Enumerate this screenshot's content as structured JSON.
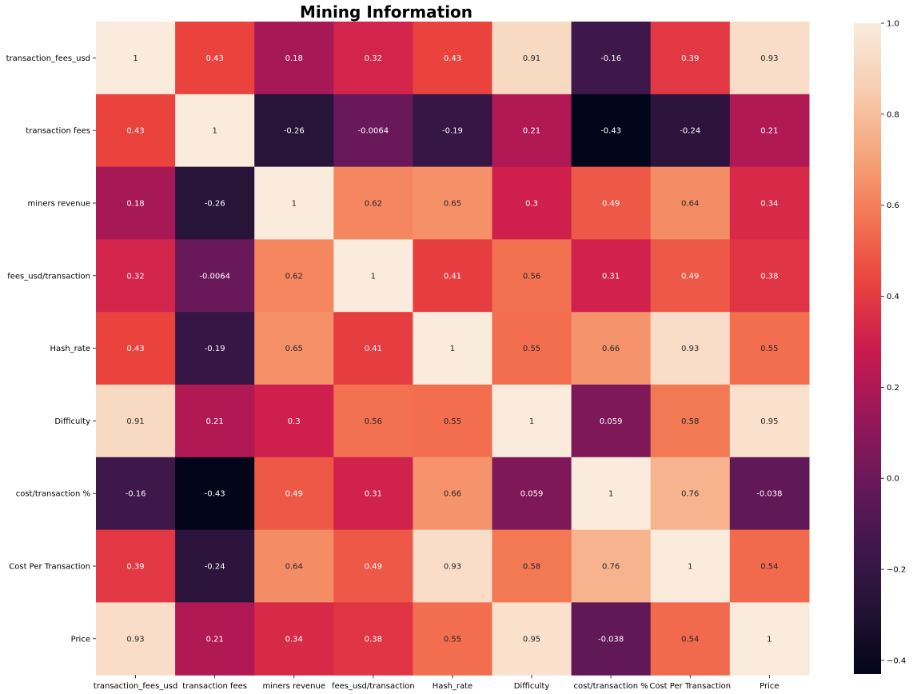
{
  "chart_data": {
    "type": "heatmap",
    "title": "Mining Information",
    "xlabel": "",
    "ylabel": "",
    "rows": [
      "transaction_fees_usd",
      "transaction fees",
      "miners revenue",
      "fees_usd/transaction",
      "Hash_rate",
      "Difficulty",
      "cost/transaction %",
      "Cost Per Transaction",
      "Price"
    ],
    "columns": [
      "transaction_fees_usd",
      "transaction fees",
      "miners revenue",
      "fees_usd/transaction",
      "Hash_rate",
      "Difficulty",
      "cost/transaction %",
      "Cost Per Transaction",
      "Price"
    ],
    "values": [
      [
        1,
        0.43,
        0.18,
        0.32,
        0.43,
        0.91,
        -0.16,
        0.39,
        0.93
      ],
      [
        0.43,
        1,
        -0.26,
        -0.0064,
        -0.19,
        0.21,
        -0.43,
        -0.24,
        0.21
      ],
      [
        0.18,
        -0.26,
        1,
        0.62,
        0.65,
        0.3,
        0.49,
        0.64,
        0.34
      ],
      [
        0.32,
        -0.0064,
        0.62,
        1,
        0.41,
        0.56,
        0.31,
        0.49,
        0.38
      ],
      [
        0.43,
        -0.19,
        0.65,
        0.41,
        1,
        0.55,
        0.66,
        0.93,
        0.55
      ],
      [
        0.91,
        0.21,
        0.3,
        0.56,
        0.55,
        1,
        0.059,
        0.58,
        0.95
      ],
      [
        -0.16,
        -0.43,
        0.49,
        0.31,
        0.66,
        0.059,
        1,
        0.76,
        -0.038
      ],
      [
        0.39,
        -0.24,
        0.64,
        0.49,
        0.93,
        0.58,
        0.76,
        1,
        0.54
      ],
      [
        0.93,
        0.21,
        0.34,
        0.38,
        0.55,
        0.95,
        -0.038,
        0.54,
        1
      ]
    ],
    "colorbar": {
      "range": [
        -0.43,
        1
      ],
      "ticks": [
        "−0.4",
        "−0.2",
        "0.0",
        "0.2",
        "0.4",
        "0.6",
        "0.8",
        "1.0"
      ],
      "colormap": "rocket"
    },
    "annotations": true
  }
}
